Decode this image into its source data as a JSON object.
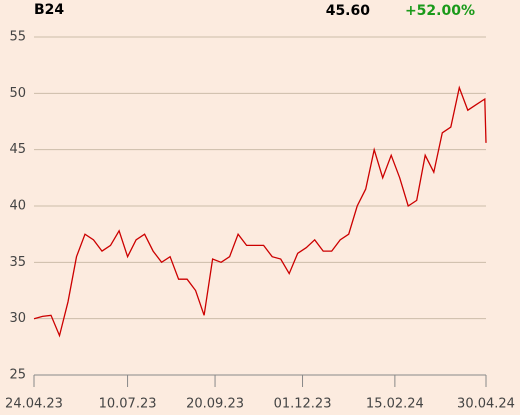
{
  "chart_data": {
    "type": "line",
    "title": "B24",
    "price_label": "45.60",
    "change_label": "+52.00%",
    "x": [
      "2023-04-24",
      "2023-05-01",
      "2023-05-08",
      "2023-05-15",
      "2023-05-22",
      "2023-05-29",
      "2023-06-05",
      "2023-06-12",
      "2023-06-19",
      "2023-06-26",
      "2023-07-03",
      "2023-07-10",
      "2023-07-17",
      "2023-07-24",
      "2023-07-31",
      "2023-08-07",
      "2023-08-14",
      "2023-08-21",
      "2023-08-28",
      "2023-09-04",
      "2023-09-11",
      "2023-09-18",
      "2023-09-25",
      "2023-10-02",
      "2023-10-09",
      "2023-10-16",
      "2023-10-23",
      "2023-10-30",
      "2023-11-06",
      "2023-11-13",
      "2023-11-20",
      "2023-11-27",
      "2023-12-04",
      "2023-12-11",
      "2023-12-18",
      "2023-12-25",
      "2024-01-01",
      "2024-01-08",
      "2024-01-15",
      "2024-01-22",
      "2024-01-29",
      "2024-02-05",
      "2024-02-12",
      "2024-02-19",
      "2024-02-26",
      "2024-03-04",
      "2024-03-11",
      "2024-03-18",
      "2024-03-25",
      "2024-04-01",
      "2024-04-08",
      "2024-04-15",
      "2024-04-22",
      "2024-04-29",
      "2024-04-30"
    ],
    "series": [
      {
        "color": "#cc0000",
        "values": [
          30.0,
          30.2,
          30.3,
          28.5,
          31.5,
          35.5,
          37.5,
          37.0,
          36.0,
          36.5,
          37.8,
          35.5,
          37.0,
          37.5,
          36.0,
          35.0,
          35.5,
          33.5,
          33.5,
          32.5,
          30.3,
          35.3,
          35.0,
          35.5,
          37.5,
          36.5,
          36.5,
          36.5,
          35.5,
          35.3,
          34.0,
          35.8,
          36.3,
          37.0,
          36.0,
          36.0,
          37.0,
          37.5,
          40.0,
          41.5,
          45.0,
          42.5,
          44.5,
          42.5,
          40.0,
          40.5,
          44.5,
          43.0,
          46.5,
          47.0,
          50.5,
          48.5,
          49.0,
          49.5,
          45.6
        ]
      }
    ],
    "xlim": [
      "2023-04-24",
      "2024-04-30"
    ],
    "xticks": [
      {
        "value": "2023-04-24",
        "label": "24.04.23"
      },
      {
        "value": "2023-07-10",
        "label": "10.07.23"
      },
      {
        "value": "2023-09-20",
        "label": "20.09.23"
      },
      {
        "value": "2023-12-01",
        "label": "01.12.23"
      },
      {
        "value": "2024-02-15",
        "label": "15.02.24"
      },
      {
        "value": "2024-04-30",
        "label": "30.04.24"
      }
    ],
    "ylim": [
      25,
      55
    ],
    "yticks": [
      25,
      30,
      35,
      40,
      45,
      50,
      55
    ],
    "grid": true
  }
}
